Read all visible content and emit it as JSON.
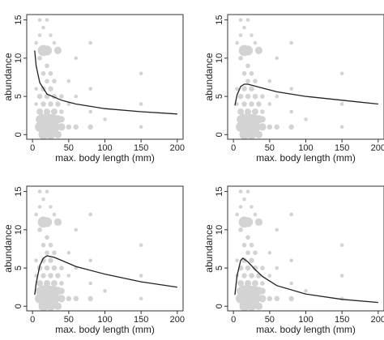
{
  "chart_data": [
    {
      "type": "scatter",
      "x_label": "max. body length (mm)",
      "y_label": "abundance",
      "xlim": [
        -8,
        208
      ],
      "ylim": [
        -0.6,
        15.7
      ],
      "xticks": [
        0,
        50,
        100,
        150,
        200
      ],
      "yticks": [
        0,
        5,
        10,
        15
      ],
      "points": {
        "color": "#d3d3d3",
        "x": [
          15,
          20,
          35,
          15,
          20,
          25,
          30,
          10,
          15,
          20,
          25,
          30,
          10,
          35,
          40,
          15,
          25,
          35,
          40,
          50,
          60,
          80,
          10,
          20,
          30,
          15,
          25,
          35,
          10,
          20,
          30,
          15,
          25,
          20,
          30,
          15,
          25,
          20,
          10,
          40,
          40,
          5,
          10,
          15,
          20,
          10,
          25,
          30,
          5,
          5,
          50,
          50,
          60,
          80,
          80,
          150,
          150,
          150,
          100,
          60,
          80
        ],
        "y": [
          11,
          11,
          11,
          1,
          1,
          1,
          1,
          1,
          2,
          2,
          2,
          2,
          2,
          2,
          1,
          0,
          0,
          0,
          2,
          1,
          1,
          1,
          3,
          3,
          3,
          4,
          4,
          4,
          5,
          5,
          5,
          6,
          6,
          7,
          7,
          8,
          8,
          9,
          10,
          3,
          5,
          12,
          13,
          14,
          15,
          15,
          13,
          12,
          6,
          4,
          4,
          7,
          5,
          3,
          6,
          1,
          4,
          8,
          2,
          10,
          12
        ],
        "size": [
          9,
          7,
          4,
          10,
          10,
          9,
          8,
          7,
          9,
          8,
          8,
          6,
          5,
          5,
          4,
          7,
          6,
          4,
          3,
          2,
          2,
          2,
          3,
          3,
          3,
          2,
          2,
          2,
          2,
          2,
          2,
          2,
          2,
          1.5,
          1.5,
          1.5,
          1.5,
          1.5,
          1.5,
          1.5,
          1.5,
          1,
          1,
          1,
          1,
          1,
          1,
          1,
          1,
          1,
          1,
          1,
          1,
          1,
          1,
          1,
          1,
          1,
          1,
          1,
          1
        ]
      },
      "series": [
        {
          "color": "#222222",
          "x": [
            3,
            5,
            10,
            20,
            40,
            60,
            100,
            150,
            200
          ],
          "values": [
            11,
            9,
            6.8,
            5.3,
            4.5,
            4,
            3.4,
            3,
            2.7
          ]
        }
      ]
    },
    {
      "type": "scatter",
      "x_label": "max. body length (mm)",
      "y_label": "abundance",
      "xlim": [
        -8,
        208
      ],
      "ylim": [
        -0.6,
        15.7
      ],
      "xticks": [
        0,
        50,
        100,
        150,
        200
      ],
      "yticks": [
        0,
        5,
        10,
        15
      ],
      "points": {
        "color": "#d3d3d3",
        "x": [
          15,
          20,
          35,
          15,
          20,
          25,
          30,
          10,
          15,
          20,
          25,
          30,
          10,
          35,
          40,
          15,
          25,
          35,
          40,
          50,
          60,
          80,
          10,
          20,
          30,
          15,
          25,
          35,
          10,
          20,
          30,
          15,
          25,
          20,
          30,
          15,
          25,
          20,
          10,
          40,
          40,
          5,
          10,
          15,
          20,
          10,
          25,
          30,
          5,
          5,
          50,
          50,
          60,
          80,
          80,
          150,
          150,
          150,
          100,
          60,
          80
        ],
        "y": [
          11,
          11,
          11,
          1,
          1,
          1,
          1,
          1,
          2,
          2,
          2,
          2,
          2,
          2,
          1,
          0,
          0,
          0,
          2,
          1,
          1,
          1,
          3,
          3,
          3,
          4,
          4,
          4,
          5,
          5,
          5,
          6,
          6,
          7,
          7,
          8,
          8,
          9,
          10,
          3,
          5,
          12,
          13,
          14,
          15,
          15,
          13,
          12,
          6,
          4,
          4,
          7,
          5,
          3,
          6,
          1,
          4,
          8,
          2,
          10,
          12
        ],
        "size": [
          9,
          7,
          4,
          10,
          10,
          9,
          8,
          7,
          9,
          8,
          8,
          6,
          5,
          5,
          4,
          7,
          6,
          4,
          3,
          2,
          2,
          2,
          3,
          3,
          3,
          2,
          2,
          2,
          2,
          2,
          2,
          2,
          2,
          1.5,
          1.5,
          1.5,
          1.5,
          1.5,
          1.5,
          1.5,
          1.5,
          1,
          1,
          1,
          1,
          1,
          1,
          1,
          1,
          1,
          1,
          1,
          1,
          1,
          1,
          1,
          1,
          1,
          1,
          1,
          1
        ]
      },
      "series": [
        {
          "color": "#222222",
          "x": [
            2,
            5,
            10,
            15,
            20,
            40,
            60,
            100,
            150,
            200
          ],
          "values": [
            3.8,
            5.2,
            6.3,
            6.6,
            6.6,
            6.1,
            5.6,
            5,
            4.5,
            4
          ]
        }
      ]
    },
    {
      "type": "scatter",
      "x_label": "max. body length (mm)",
      "y_label": "abundance",
      "xlim": [
        -8,
        208
      ],
      "ylim": [
        -0.6,
        15.7
      ],
      "xticks": [
        0,
        50,
        100,
        150,
        200
      ],
      "yticks": [
        0,
        5,
        10,
        15
      ],
      "points": {
        "color": "#d3d3d3",
        "x": [
          15,
          20,
          35,
          15,
          20,
          25,
          30,
          10,
          15,
          20,
          25,
          30,
          10,
          35,
          40,
          15,
          25,
          35,
          40,
          50,
          60,
          80,
          10,
          20,
          30,
          15,
          25,
          35,
          10,
          20,
          30,
          15,
          25,
          20,
          30,
          15,
          25,
          20,
          10,
          40,
          40,
          5,
          10,
          15,
          20,
          10,
          25,
          30,
          5,
          5,
          50,
          50,
          60,
          80,
          80,
          150,
          150,
          150,
          100,
          60,
          80
        ],
        "y": [
          11,
          11,
          11,
          1,
          1,
          1,
          1,
          1,
          2,
          2,
          2,
          2,
          2,
          2,
          1,
          0,
          0,
          0,
          2,
          1,
          1,
          1,
          3,
          3,
          3,
          4,
          4,
          4,
          5,
          5,
          5,
          6,
          6,
          7,
          7,
          8,
          8,
          9,
          10,
          3,
          5,
          12,
          13,
          14,
          15,
          15,
          13,
          12,
          6,
          4,
          4,
          7,
          5,
          3,
          6,
          1,
          4,
          8,
          2,
          10,
          12
        ],
        "size": [
          9,
          7,
          4,
          10,
          10,
          9,
          8,
          7,
          9,
          8,
          8,
          6,
          5,
          5,
          4,
          7,
          6,
          4,
          3,
          2,
          2,
          2,
          3,
          3,
          3,
          2,
          2,
          2,
          2,
          2,
          2,
          2,
          2,
          1.5,
          1.5,
          1.5,
          1.5,
          1.5,
          1.5,
          1.5,
          1.5,
          1,
          1,
          1,
          1,
          1,
          1,
          1,
          1,
          1,
          1,
          1,
          1,
          1,
          1,
          1,
          1,
          1,
          1,
          1,
          1
        ]
      },
      "series": [
        {
          "color": "#222222",
          "x": [
            3,
            5,
            10,
            15,
            20,
            30,
            40,
            60,
            100,
            150,
            200
          ],
          "values": [
            1.5,
            3,
            5.3,
            6.3,
            6.6,
            6.4,
            6,
            5.2,
            4.2,
            3.2,
            2.5
          ]
        }
      ]
    },
    {
      "type": "scatter",
      "x_label": "max. body length (mm)",
      "y_label": "abundance",
      "xlim": [
        -8,
        208
      ],
      "ylim": [
        -0.6,
        15.7
      ],
      "xticks": [
        0,
        50,
        100,
        150,
        200
      ],
      "yticks": [
        0,
        5,
        10,
        15
      ],
      "points": {
        "color": "#d3d3d3",
        "x": [
          15,
          20,
          35,
          15,
          20,
          25,
          30,
          10,
          15,
          20,
          25,
          30,
          10,
          35,
          40,
          15,
          25,
          35,
          40,
          50,
          60,
          80,
          10,
          20,
          30,
          15,
          25,
          35,
          10,
          20,
          30,
          15,
          25,
          20,
          30,
          15,
          25,
          20,
          10,
          40,
          40,
          5,
          10,
          15,
          20,
          10,
          25,
          30,
          5,
          5,
          50,
          50,
          60,
          80,
          80,
          150,
          150,
          150,
          100,
          60,
          80
        ],
        "y": [
          11,
          11,
          11,
          1,
          1,
          1,
          1,
          1,
          2,
          2,
          2,
          2,
          2,
          2,
          1,
          0,
          0,
          0,
          2,
          1,
          1,
          1,
          3,
          3,
          3,
          4,
          4,
          4,
          5,
          5,
          5,
          6,
          6,
          7,
          7,
          8,
          8,
          9,
          10,
          3,
          5,
          12,
          13,
          14,
          15,
          15,
          13,
          12,
          6,
          4,
          4,
          7,
          5,
          3,
          6,
          1,
          4,
          8,
          2,
          10,
          12
        ],
        "size": [
          9,
          7,
          4,
          10,
          10,
          9,
          8,
          7,
          9,
          8,
          8,
          6,
          5,
          5,
          4,
          7,
          6,
          4,
          3,
          2,
          2,
          2,
          3,
          3,
          3,
          2,
          2,
          2,
          2,
          2,
          2,
          2,
          2,
          1.5,
          1.5,
          1.5,
          1.5,
          1.5,
          1.5,
          1.5,
          1.5,
          1,
          1,
          1,
          1,
          1,
          1,
          1,
          1,
          1,
          1,
          1,
          1,
          1,
          1,
          1,
          1,
          1,
          1,
          1,
          1
        ]
      },
      "series": [
        {
          "color": "#222222",
          "x": [
            2,
            5,
            10,
            13,
            20,
            30,
            40,
            60,
            100,
            150,
            200
          ],
          "values": [
            1.5,
            4,
            6,
            6.3,
            5.8,
            4.8,
            3.9,
            2.7,
            1.6,
            0.9,
            0.5
          ]
        }
      ]
    }
  ]
}
